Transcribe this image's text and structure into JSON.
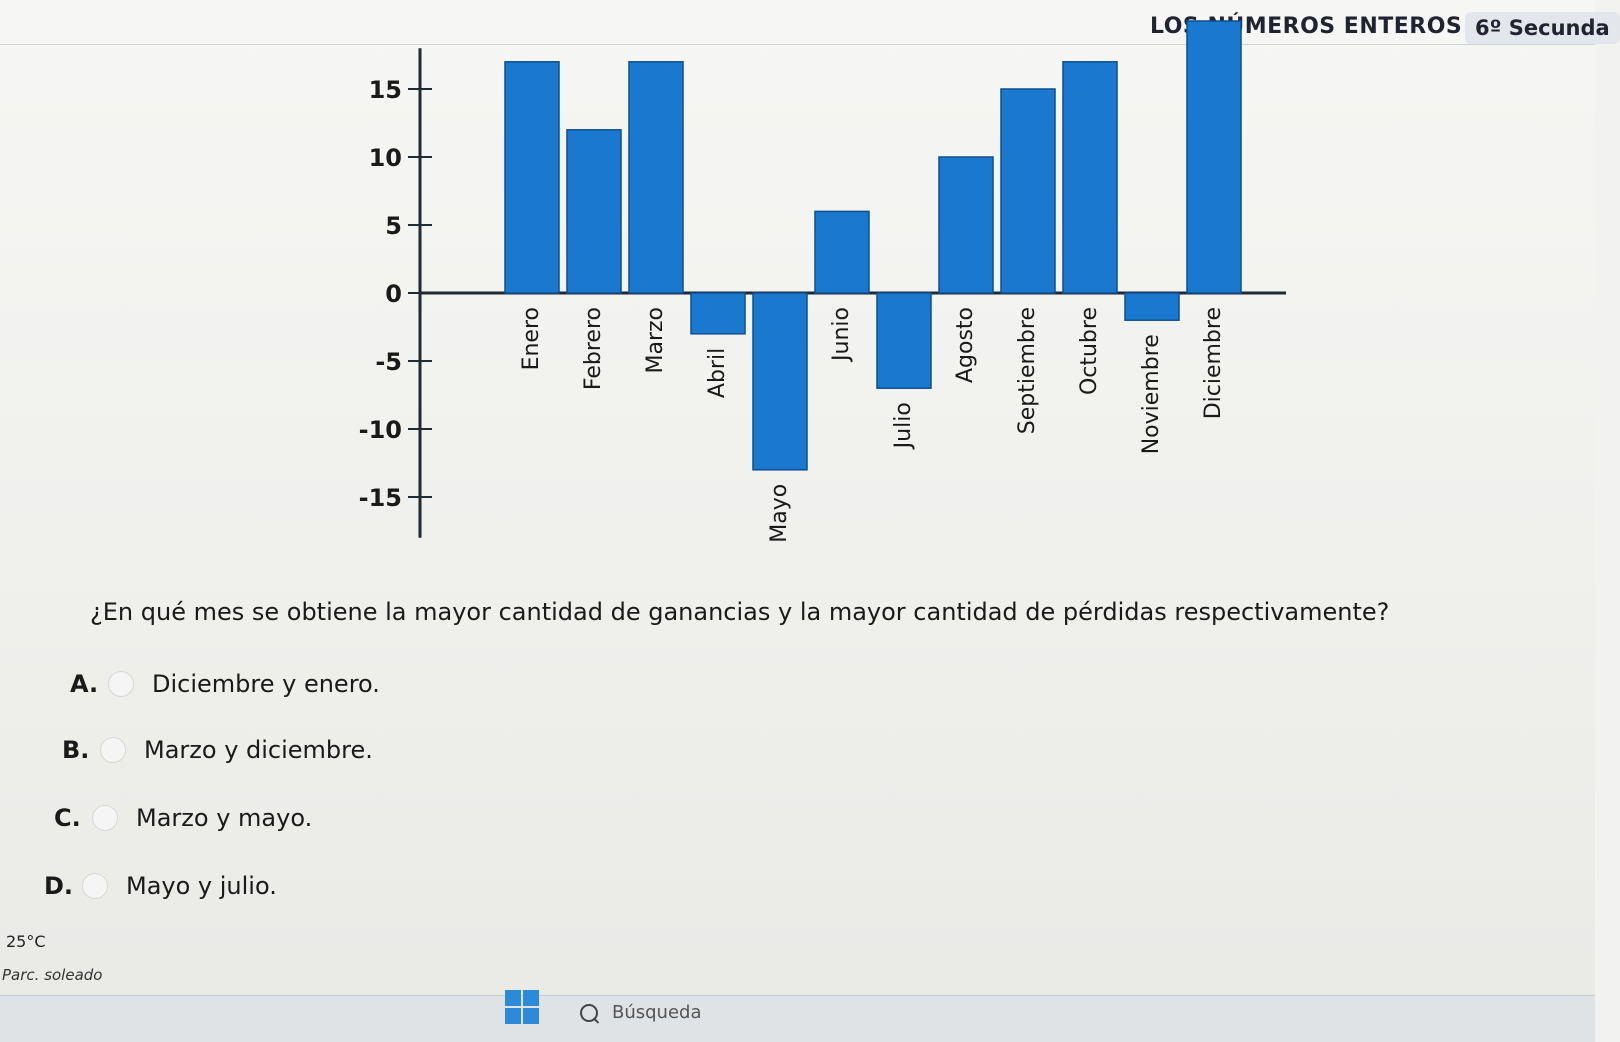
{
  "header": {
    "title": "LOS NÚMEROS ENTEROS",
    "grade": "6º Secunda"
  },
  "question": "¿En qué mes se obtiene la mayor cantidad de ganancias y la mayor cantidad de pérdidas respectivamente?",
  "options": [
    {
      "letter": "A.",
      "text": "Diciembre y enero."
    },
    {
      "letter": "B.",
      "text": "Marzo y diciembre."
    },
    {
      "letter": "C.",
      "text": "Marzo y mayo."
    },
    {
      "letter": "D.",
      "text": "Mayo y julio."
    }
  ],
  "status": {
    "temperature": "25°C",
    "weather": "Parc. soleado"
  },
  "taskbar": {
    "search_placeholder": "Búsqueda"
  },
  "colors": {
    "bar_fill": "#1b78cf",
    "bar_stroke": "#0d4f8f",
    "axis": "#202a35"
  },
  "chart_data": {
    "type": "bar",
    "categories": [
      "Enero",
      "Febrero",
      "Marzo",
      "Abril",
      "Mayo",
      "Junio",
      "Julio",
      "Agosto",
      "Septiembre",
      "Octubre",
      "Noviembre",
      "Diciembre"
    ],
    "values": [
      17,
      12,
      17,
      -3,
      -13,
      6,
      -7,
      10,
      15,
      17,
      -2,
      20
    ],
    "yticks": [
      -15,
      -10,
      -5,
      0,
      5,
      10,
      15
    ],
    "ylim": [
      -18,
      18
    ],
    "title": "",
    "xlabel": "",
    "ylabel": ""
  }
}
